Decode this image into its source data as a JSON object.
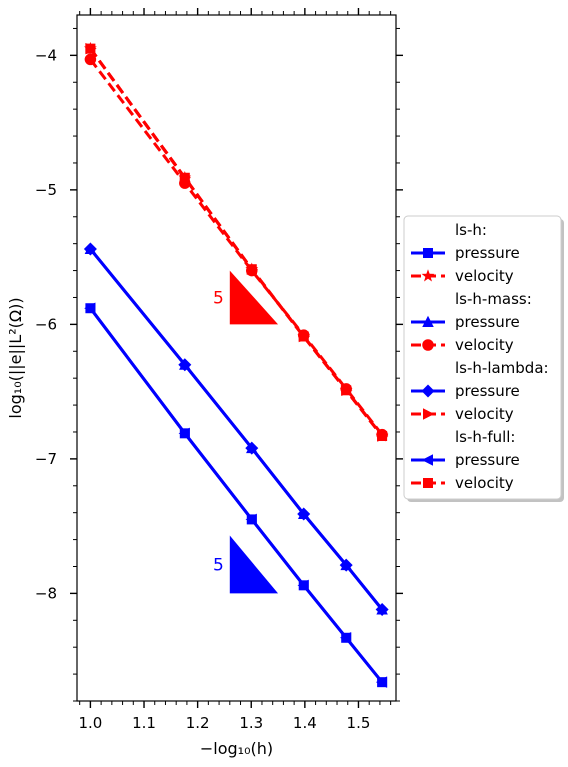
{
  "chart_data": {
    "type": "line",
    "xlabel": "−log₁₀(h)",
    "ylabel": "log₁₀(||e||L²(Ω))",
    "xlim": [
      0.975,
      1.57
    ],
    "ylim": [
      -8.8,
      -3.7
    ],
    "x_ticks": [
      1.0,
      1.1,
      1.2,
      1.3,
      1.4,
      1.5
    ],
    "x_tick_labels": [
      "1.0",
      "1.1",
      "1.2",
      "1.3",
      "1.4",
      "1.5"
    ],
    "y_ticks": [
      -4,
      -5,
      -6,
      -7,
      -8
    ],
    "y_tick_labels": [
      "−4",
      "−5",
      "−6",
      "−7",
      "−8"
    ],
    "grid": false,
    "legend_position": "outside-right",
    "x": [
      1.0,
      1.1761,
      1.301,
      1.3979,
      1.4771,
      1.5441
    ],
    "series": [
      {
        "group": "ls-h",
        "name": "pressure",
        "color": "#0000ff",
        "linestyle": "solid",
        "marker": "square",
        "values": [
          -5.88,
          -6.81,
          -7.45,
          -7.94,
          -8.33,
          -8.66
        ]
      },
      {
        "group": "ls-h",
        "name": "velocity",
        "color": "#ff0000",
        "linestyle": "dashed",
        "marker": "star",
        "values": [
          -3.95,
          -4.91,
          -5.59,
          -6.09,
          -6.49,
          -6.83
        ]
      },
      {
        "group": "ls-h-mass",
        "name": "pressure",
        "color": "#0000ff",
        "linestyle": "solid",
        "marker": "triangle-up",
        "values": [
          -5.44,
          -6.3,
          -6.92,
          -7.41,
          -7.79,
          -8.12
        ]
      },
      {
        "group": "ls-h-mass",
        "name": "velocity",
        "color": "#ff0000",
        "linestyle": "dashed",
        "marker": "circle",
        "values": [
          -4.03,
          -4.95,
          -5.6,
          -6.08,
          -6.48,
          -6.82
        ]
      },
      {
        "group": "ls-h-lambda",
        "name": "pressure",
        "color": "#0000ff",
        "linestyle": "solid",
        "marker": "diamond",
        "values": [
          -5.44,
          -6.3,
          -6.92,
          -7.41,
          -7.79,
          -8.12
        ]
      },
      {
        "group": "ls-h-lambda",
        "name": "velocity",
        "color": "#ff0000",
        "linestyle": "dashed",
        "marker": "triangle-right",
        "values": [
          -3.95,
          -4.91,
          -5.59,
          -6.09,
          -6.49,
          -6.83
        ]
      },
      {
        "group": "ls-h-full",
        "name": "pressure",
        "color": "#0000ff",
        "linestyle": "solid",
        "marker": "triangle-left",
        "values": [
          -5.88,
          -6.81,
          -7.45,
          -7.94,
          -8.33,
          -8.66
        ]
      },
      {
        "group": "ls-h-full",
        "name": "velocity",
        "color": "#ff0000",
        "linestyle": "dashed",
        "marker": "square",
        "values": [
          -3.95,
          -4.91,
          -5.59,
          -6.09,
          -6.49,
          -6.83
        ]
      }
    ],
    "legend": {
      "groups": [
        "ls-h:",
        "ls-h-mass:",
        "ls-h-lambda:",
        "ls-h-full:"
      ]
    },
    "slope_triangles": [
      {
        "label": "5",
        "color": "#ff0000",
        "x0": 1.26,
        "x1": 1.35,
        "y_top": -5.6,
        "y_bottom": -6.0
      },
      {
        "label": "5",
        "color": "#0000ff",
        "x0": 1.26,
        "x1": 1.35,
        "y_top": -7.57,
        "y_bottom": -8.0
      }
    ]
  }
}
